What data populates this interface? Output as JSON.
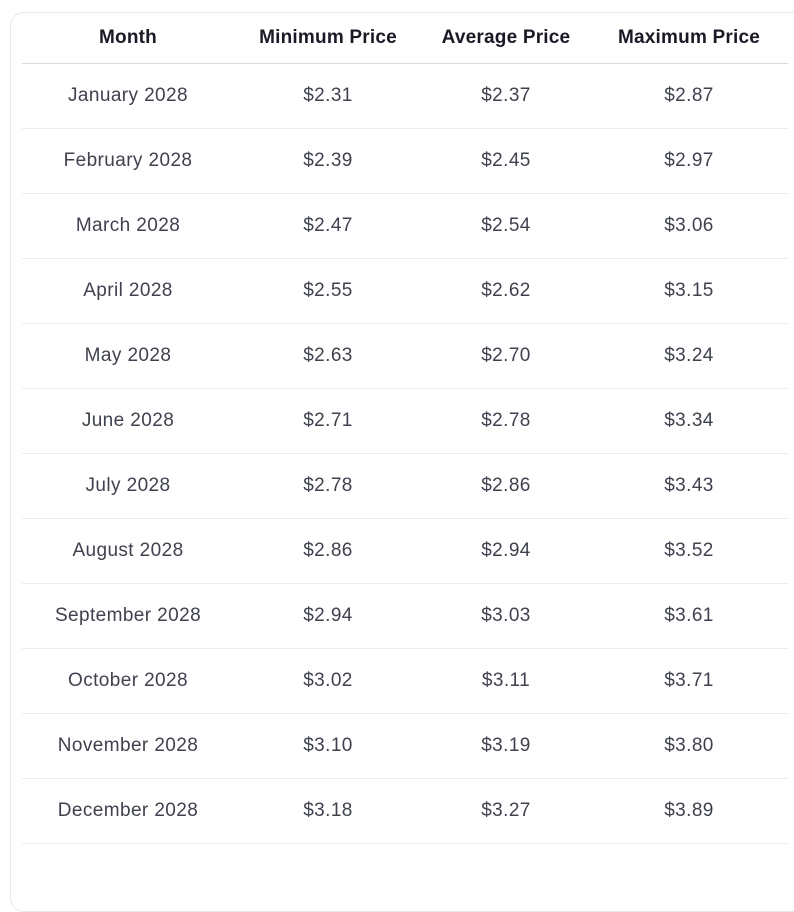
{
  "colors": {
    "page_background": "#ffffff",
    "card_border": "#e7e7ea",
    "header_text": "#1a1a26",
    "cell_text": "#3f424e",
    "header_rule": "#d8d8dd",
    "row_rule": "#ededf0"
  },
  "chart_data": {
    "type": "table",
    "columns": [
      "Month",
      "Minimum Price",
      "Average Price",
      "Maximum Price"
    ],
    "rows": [
      [
        "January 2028",
        "$2.31",
        "$2.37",
        "$2.87"
      ],
      [
        "February 2028",
        "$2.39",
        "$2.45",
        "$2.97"
      ],
      [
        "March 2028",
        "$2.47",
        "$2.54",
        "$3.06"
      ],
      [
        "April 2028",
        "$2.55",
        "$2.62",
        "$3.15"
      ],
      [
        "May 2028",
        "$2.63",
        "$2.70",
        "$3.24"
      ],
      [
        "June 2028",
        "$2.71",
        "$2.78",
        "$3.34"
      ],
      [
        "July 2028",
        "$2.78",
        "$2.86",
        "$3.43"
      ],
      [
        "August 2028",
        "$2.86",
        "$2.94",
        "$3.52"
      ],
      [
        "September 2028",
        "$2.94",
        "$3.03",
        "$3.61"
      ],
      [
        "October 2028",
        "$3.02",
        "$3.11",
        "$3.71"
      ],
      [
        "November 2028",
        "$3.10",
        "$3.19",
        "$3.80"
      ],
      [
        "December 2028",
        "$3.18",
        "$3.27",
        "$3.89"
      ]
    ]
  }
}
